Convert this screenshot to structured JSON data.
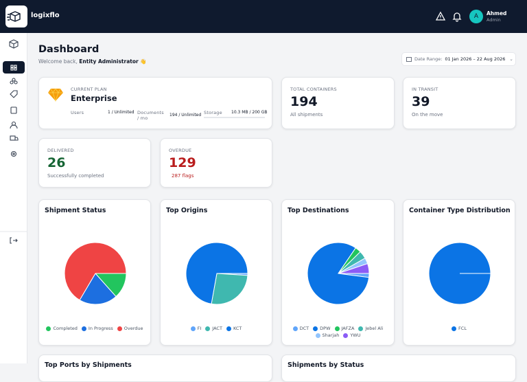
{
  "header": {
    "brand": "logixflo",
    "user": {
      "initial": "A",
      "name": "Ahmed",
      "role": "Admin"
    }
  },
  "page": {
    "title": "Dashboard",
    "welcome": "Welcome back,",
    "entity": "Entity Administrator",
    "wave": "👋",
    "date_range": {
      "label": "Date Range:",
      "value": "01 Jan 2026 – 22 Aug 2026"
    }
  },
  "plan": {
    "label": "CURRENT PLAN",
    "name": "Enterprise",
    "usage": [
      {
        "label": "Users",
        "value": "1 / Unlimited"
      },
      {
        "label": "Documents / mo",
        "value": "194 / Unlimited"
      },
      {
        "label": "Storage",
        "value": "10.3 MB / 200 GB"
      }
    ]
  },
  "stats": [
    {
      "label": "TOTAL CONTAINERS",
      "value": "194",
      "sub": "All shipments"
    },
    {
      "label": "IN TRANSIT",
      "value": "39",
      "sub": "On the move"
    },
    {
      "label": "DELIVERED",
      "value": "26",
      "sub": "Successfully completed"
    },
    {
      "label": "OVERDUE",
      "value": "129",
      "sub": "287 flags"
    }
  ],
  "chart_data": [
    {
      "type": "pie",
      "title": "Shipment Status",
      "categories": [
        "Completed",
        "In Progress",
        "Overdue"
      ],
      "values": [
        26,
        39,
        129
      ],
      "colors": [
        "#22c55e",
        "#1d6fe0",
        "#ef4444"
      ]
    },
    {
      "type": "pie",
      "title": "Top Origins",
      "categories": [
        "FI",
        "JACT",
        "KCT"
      ],
      "values": [
        2,
        52,
        140
      ],
      "colors": [
        "#60a5fa",
        "#3fb8af",
        "#0b74e5"
      ]
    },
    {
      "type": "pie",
      "title": "Top Destinations",
      "categories": [
        "DCT",
        "DPW",
        "JAFZA",
        "Jebel Ali",
        "Sharjah",
        "YWU"
      ],
      "values": [
        4,
        160,
        6,
        8,
        6,
        10
      ],
      "colors": [
        "#60a5fa",
        "#0b74e5",
        "#22c55e",
        "#3fb8af",
        "#93c5fd",
        "#8b5cf6"
      ]
    },
    {
      "type": "pie",
      "title": "Container Type Distribution",
      "categories": [
        "FCL"
      ],
      "values": [
        194
      ],
      "colors": [
        "#0b74e5"
      ]
    }
  ],
  "bottom": [
    "Top Ports by Shipments",
    "Shipments by Status"
  ]
}
